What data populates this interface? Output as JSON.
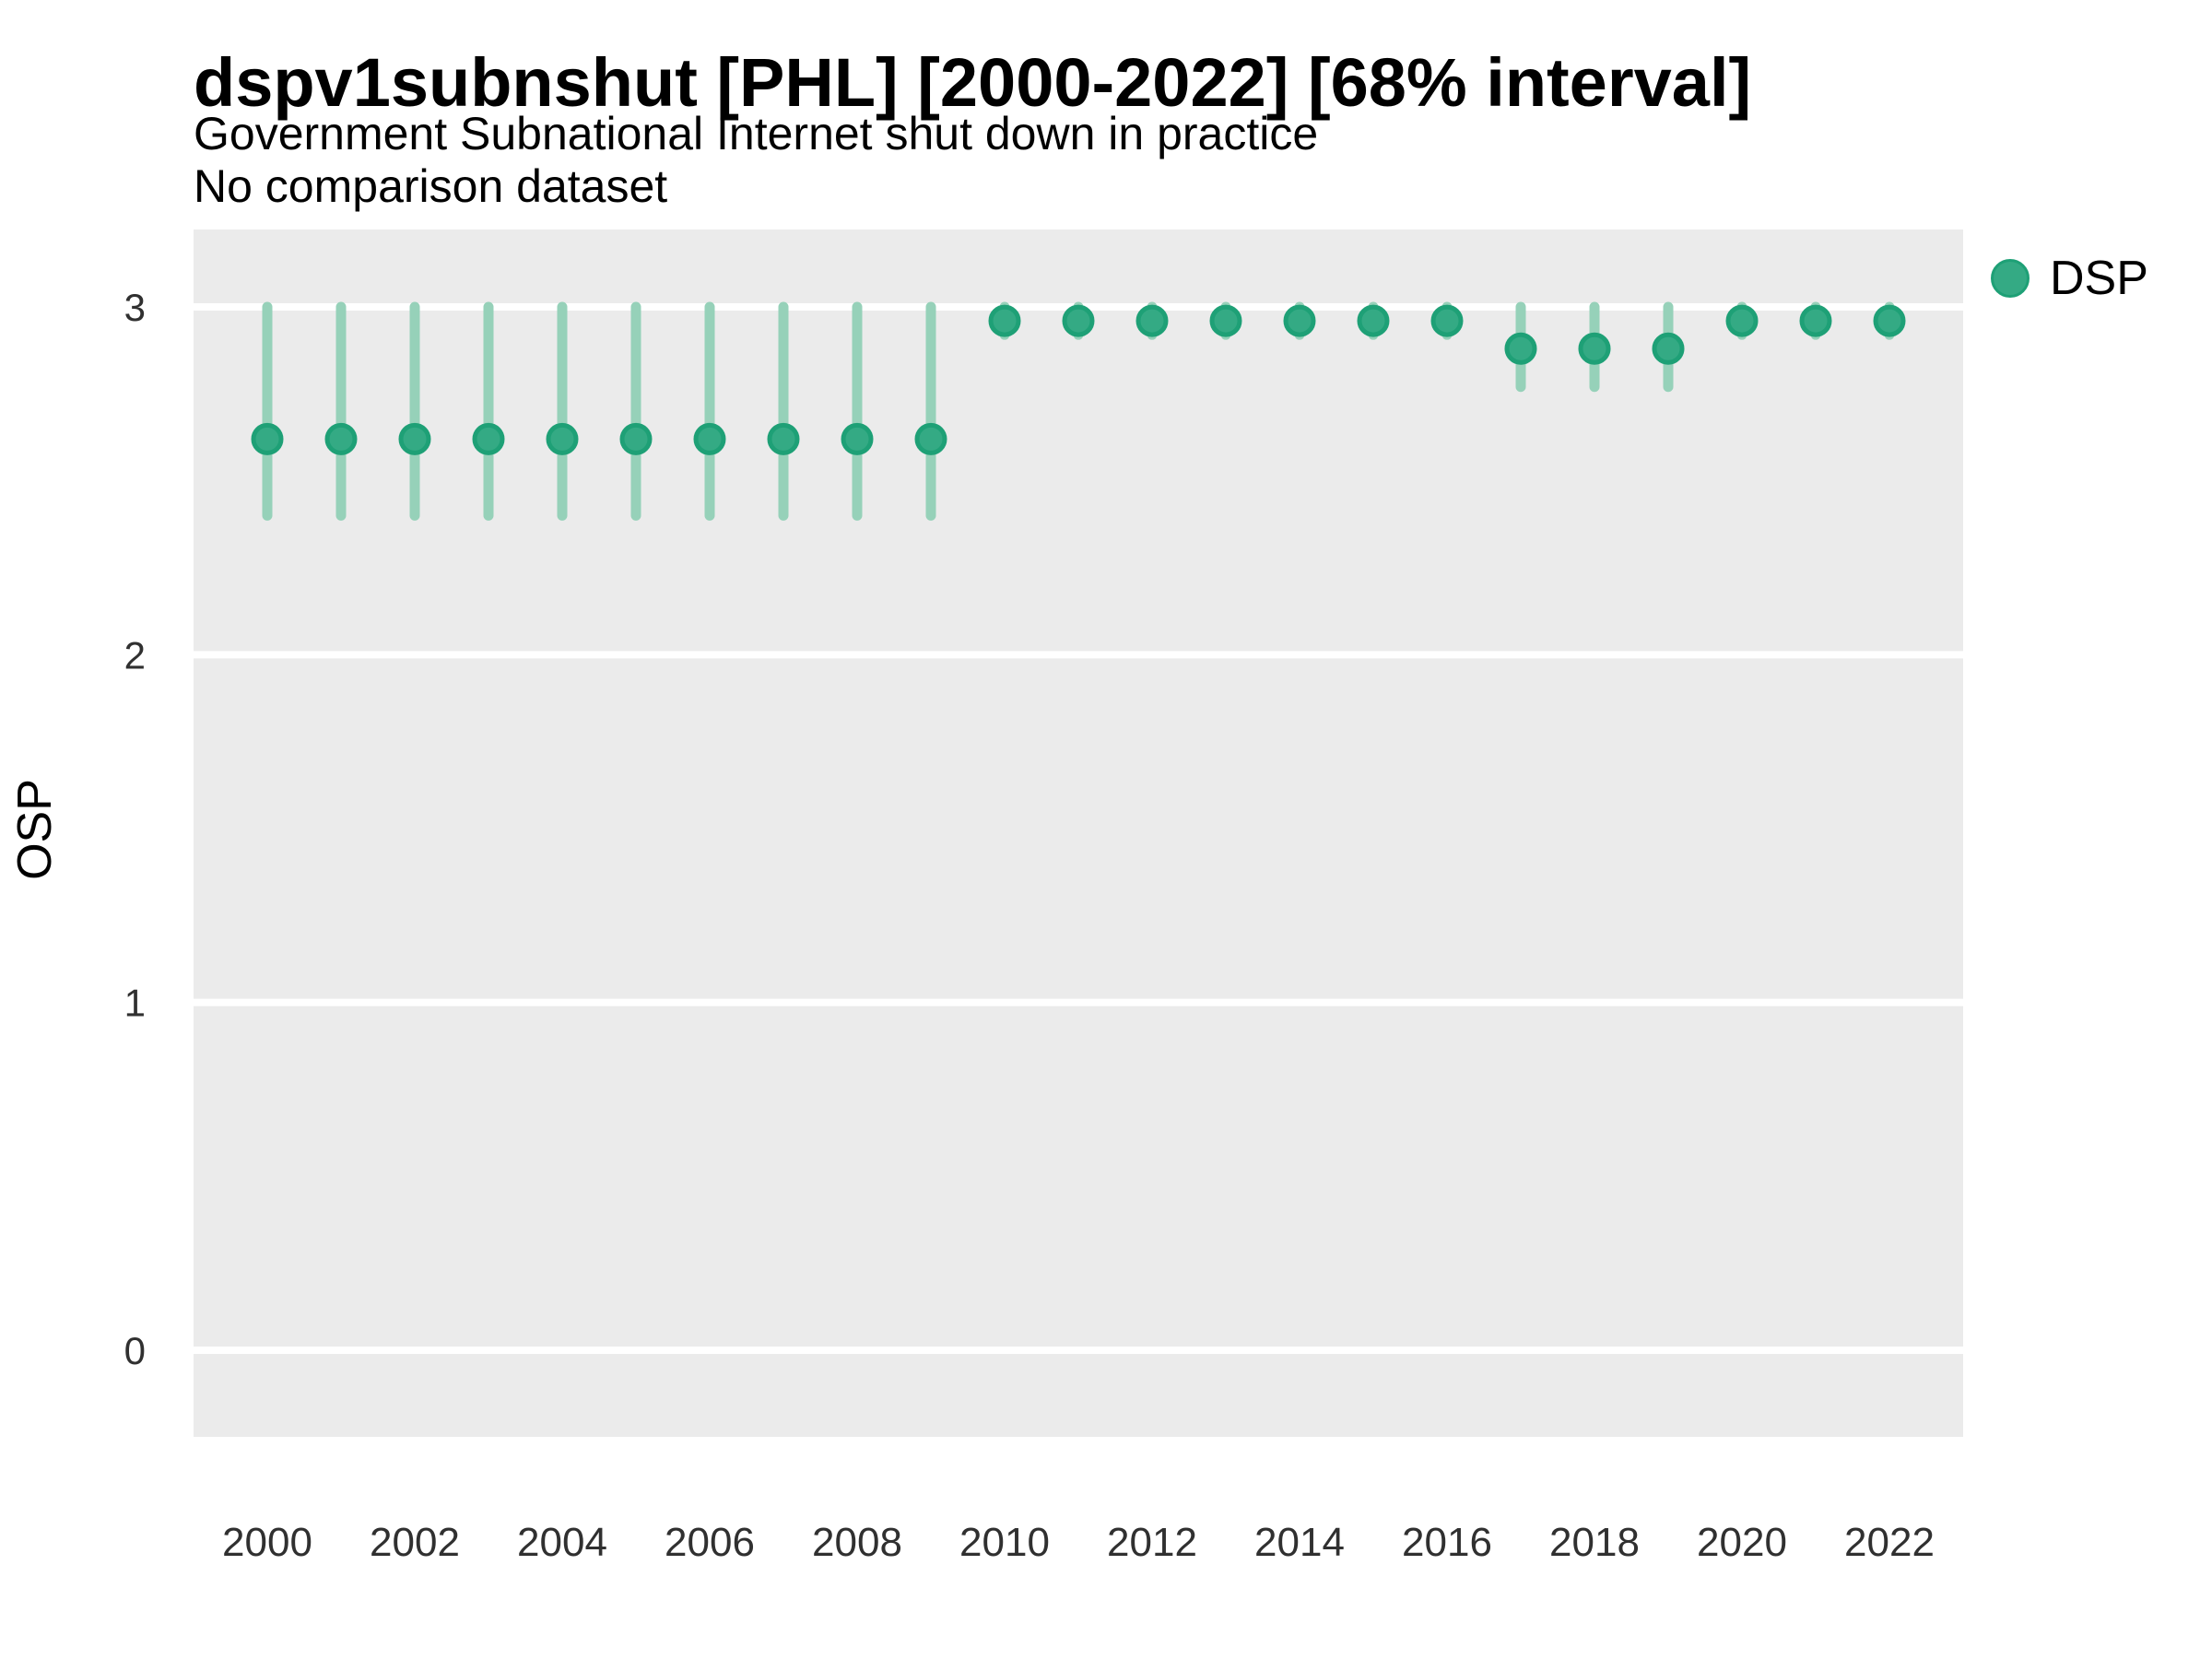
{
  "header": {
    "title": "dspv1subnshut [PHL] [2000-2022] [68% interval]",
    "subtitle": "Government Subnational Internet shut down in practice",
    "note": "No comparison dataset"
  },
  "axis": {
    "y_label": "OSP"
  },
  "legend": {
    "label": "DSP"
  },
  "colors": {
    "point_fill": "#34AA84",
    "point_stroke": "#1EA076",
    "interval": "#96D1B9",
    "panel_bg": "#EBEBEB",
    "gridline": "#FFFFFF",
    "tick_text": "#303030"
  },
  "chart_data": {
    "type": "scatter",
    "title": "dspv1subnshut [PHL] [2000-2022] [68% interval]",
    "subtitle": "Government Subnational Internet shut down in practice",
    "note": "No comparison dataset",
    "xlabel": "",
    "ylabel": "OSP",
    "interval_level": "68%",
    "legend_position": "right-top",
    "grid": "horizontal-white-on-grey",
    "ylim": [
      -0.25,
      3.22
    ],
    "yticks": [
      0,
      1,
      2,
      3
    ],
    "xticks": [
      2000,
      2002,
      2004,
      2006,
      2008,
      2010,
      2012,
      2014,
      2016,
      2018,
      2020,
      2022
    ],
    "x": [
      2000,
      2001,
      2002,
      2003,
      2004,
      2005,
      2006,
      2007,
      2008,
      2009,
      2010,
      2011,
      2012,
      2013,
      2014,
      2015,
      2016,
      2017,
      2018,
      2019,
      2020,
      2021,
      2022
    ],
    "series": [
      {
        "name": "DSP",
        "est": [
          2.62,
          2.62,
          2.62,
          2.62,
          2.62,
          2.62,
          2.62,
          2.62,
          2.62,
          2.62,
          2.96,
          2.96,
          2.96,
          2.96,
          2.96,
          2.96,
          2.96,
          2.88,
          2.88,
          2.88,
          2.96,
          2.96,
          2.96
        ],
        "lo": [
          2.4,
          2.4,
          2.4,
          2.4,
          2.4,
          2.4,
          2.4,
          2.4,
          2.4,
          2.4,
          2.92,
          2.92,
          2.92,
          2.92,
          2.92,
          2.92,
          2.92,
          2.77,
          2.77,
          2.77,
          2.92,
          2.92,
          2.92
        ],
        "hi": [
          3.0,
          3.0,
          3.0,
          3.0,
          3.0,
          3.0,
          3.0,
          3.0,
          3.0,
          3.0,
          3.0,
          3.0,
          3.0,
          3.0,
          3.0,
          3.0,
          3.0,
          3.0,
          3.0,
          3.0,
          3.0,
          3.0,
          3.0
        ]
      }
    ]
  }
}
